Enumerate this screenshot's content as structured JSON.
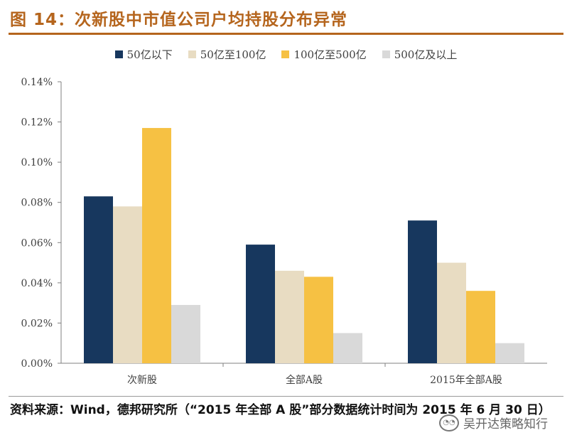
{
  "figure": {
    "title": "图 14：次新股中市值公司户均持股分布异常",
    "source": "资料来源：Wind，德邦研究所（“2015 年全部 A 股”部分数据统计时间为 2015 年 6 月 30 日）",
    "watermark": "吴开达策略知行"
  },
  "chart_data": {
    "type": "bar",
    "title": "",
    "categories": [
      "次新股",
      "全部A股",
      "2015年全部A股"
    ],
    "series": [
      {
        "name": "50亿以下",
        "color": "#17375E",
        "values": [
          0.083,
          0.059,
          0.071
        ]
      },
      {
        "name": "50亿至100亿",
        "color": "#E8DCC2",
        "values": [
          0.078,
          0.046,
          0.05
        ]
      },
      {
        "name": "100亿至500亿",
        "color": "#F6C143",
        "values": [
          0.117,
          0.043,
          0.036
        ]
      },
      {
        "name": "500亿及以上",
        "color": "#D9D9D9",
        "values": [
          0.029,
          0.015,
          0.01
        ]
      }
    ],
    "ylim": [
      0,
      0.14
    ],
    "yticks": [
      "0.00%",
      "0.02%",
      "0.04%",
      "0.06%",
      "0.08%",
      "0.10%",
      "0.12%",
      "0.14%"
    ],
    "xlabel": "",
    "ylabel": "",
    "legend": "top",
    "grid": false
  }
}
